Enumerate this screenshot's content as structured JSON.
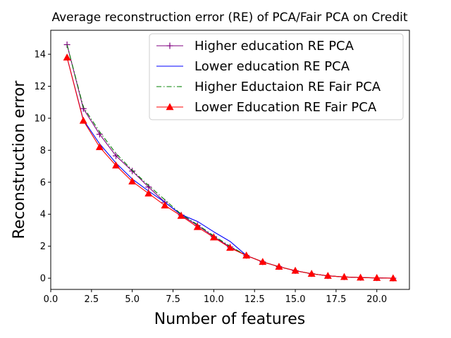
{
  "chart_data": {
    "type": "line",
    "title": "Average reconstruction error (RE) of PCA/Fair PCA on Credit",
    "xlabel": "Number of features",
    "ylabel": "Reconstruction error",
    "xlim": [
      0,
      22
    ],
    "ylim": [
      -0.7,
      15.5
    ],
    "x_ticks": [
      "0.0",
      "2.5",
      "5.0",
      "7.5",
      "10.0",
      "12.5",
      "15.0",
      "17.5",
      "20.0"
    ],
    "x_tick_values": [
      0,
      2.5,
      5,
      7.5,
      10,
      12.5,
      15,
      17.5,
      20
    ],
    "y_ticks": [
      "0",
      "2",
      "4",
      "6",
      "8",
      "10",
      "12",
      "14"
    ],
    "y_tick_values": [
      0,
      2,
      4,
      6,
      8,
      10,
      12,
      14
    ],
    "legend_position": "top-right",
    "x": [
      1,
      2,
      3,
      4,
      5,
      6,
      7,
      8,
      9,
      10,
      11,
      12,
      13,
      14,
      15,
      16,
      17,
      18,
      19,
      20,
      21
    ],
    "series": [
      {
        "name": "Higher education RE PCA",
        "color": "#800080",
        "line_style": "solid",
        "marker": "plus",
        "values": [
          14.6,
          10.6,
          9.0,
          7.65,
          6.7,
          5.7,
          4.75,
          3.95,
          3.3,
          2.6,
          1.95,
          1.42,
          1.02,
          0.72,
          0.47,
          0.28,
          0.15,
          0.08,
          0.04,
          0.02,
          0.0
        ]
      },
      {
        "name": "Lower education RE PCA",
        "color": "#0000ff",
        "line_style": "solid",
        "marker": "none",
        "values": [
          13.8,
          9.9,
          8.4,
          7.2,
          6.2,
          5.45,
          4.75,
          3.98,
          3.55,
          2.9,
          2.3,
          1.42,
          1.02,
          0.72,
          0.47,
          0.28,
          0.15,
          0.08,
          0.04,
          0.02,
          0.0
        ]
      },
      {
        "name": "Higher Eductaion RE Fair PCA",
        "color": "#008000",
        "line_style": "dashdot",
        "marker": "none",
        "values": [
          14.6,
          10.7,
          9.15,
          7.8,
          6.75,
          5.8,
          4.9,
          4.0,
          3.35,
          2.65,
          2.0,
          1.42,
          1.02,
          0.72,
          0.47,
          0.28,
          0.15,
          0.08,
          0.04,
          0.02,
          0.0
        ]
      },
      {
        "name": "Lower Education RE Fair PCA",
        "color": "#ff0000",
        "line_style": "solid",
        "marker": "triangle",
        "values": [
          13.8,
          9.85,
          8.2,
          7.05,
          6.05,
          5.3,
          4.55,
          3.9,
          3.2,
          2.55,
          1.9,
          1.42,
          1.02,
          0.72,
          0.47,
          0.28,
          0.15,
          0.08,
          0.04,
          0.02,
          0.0
        ]
      }
    ]
  }
}
